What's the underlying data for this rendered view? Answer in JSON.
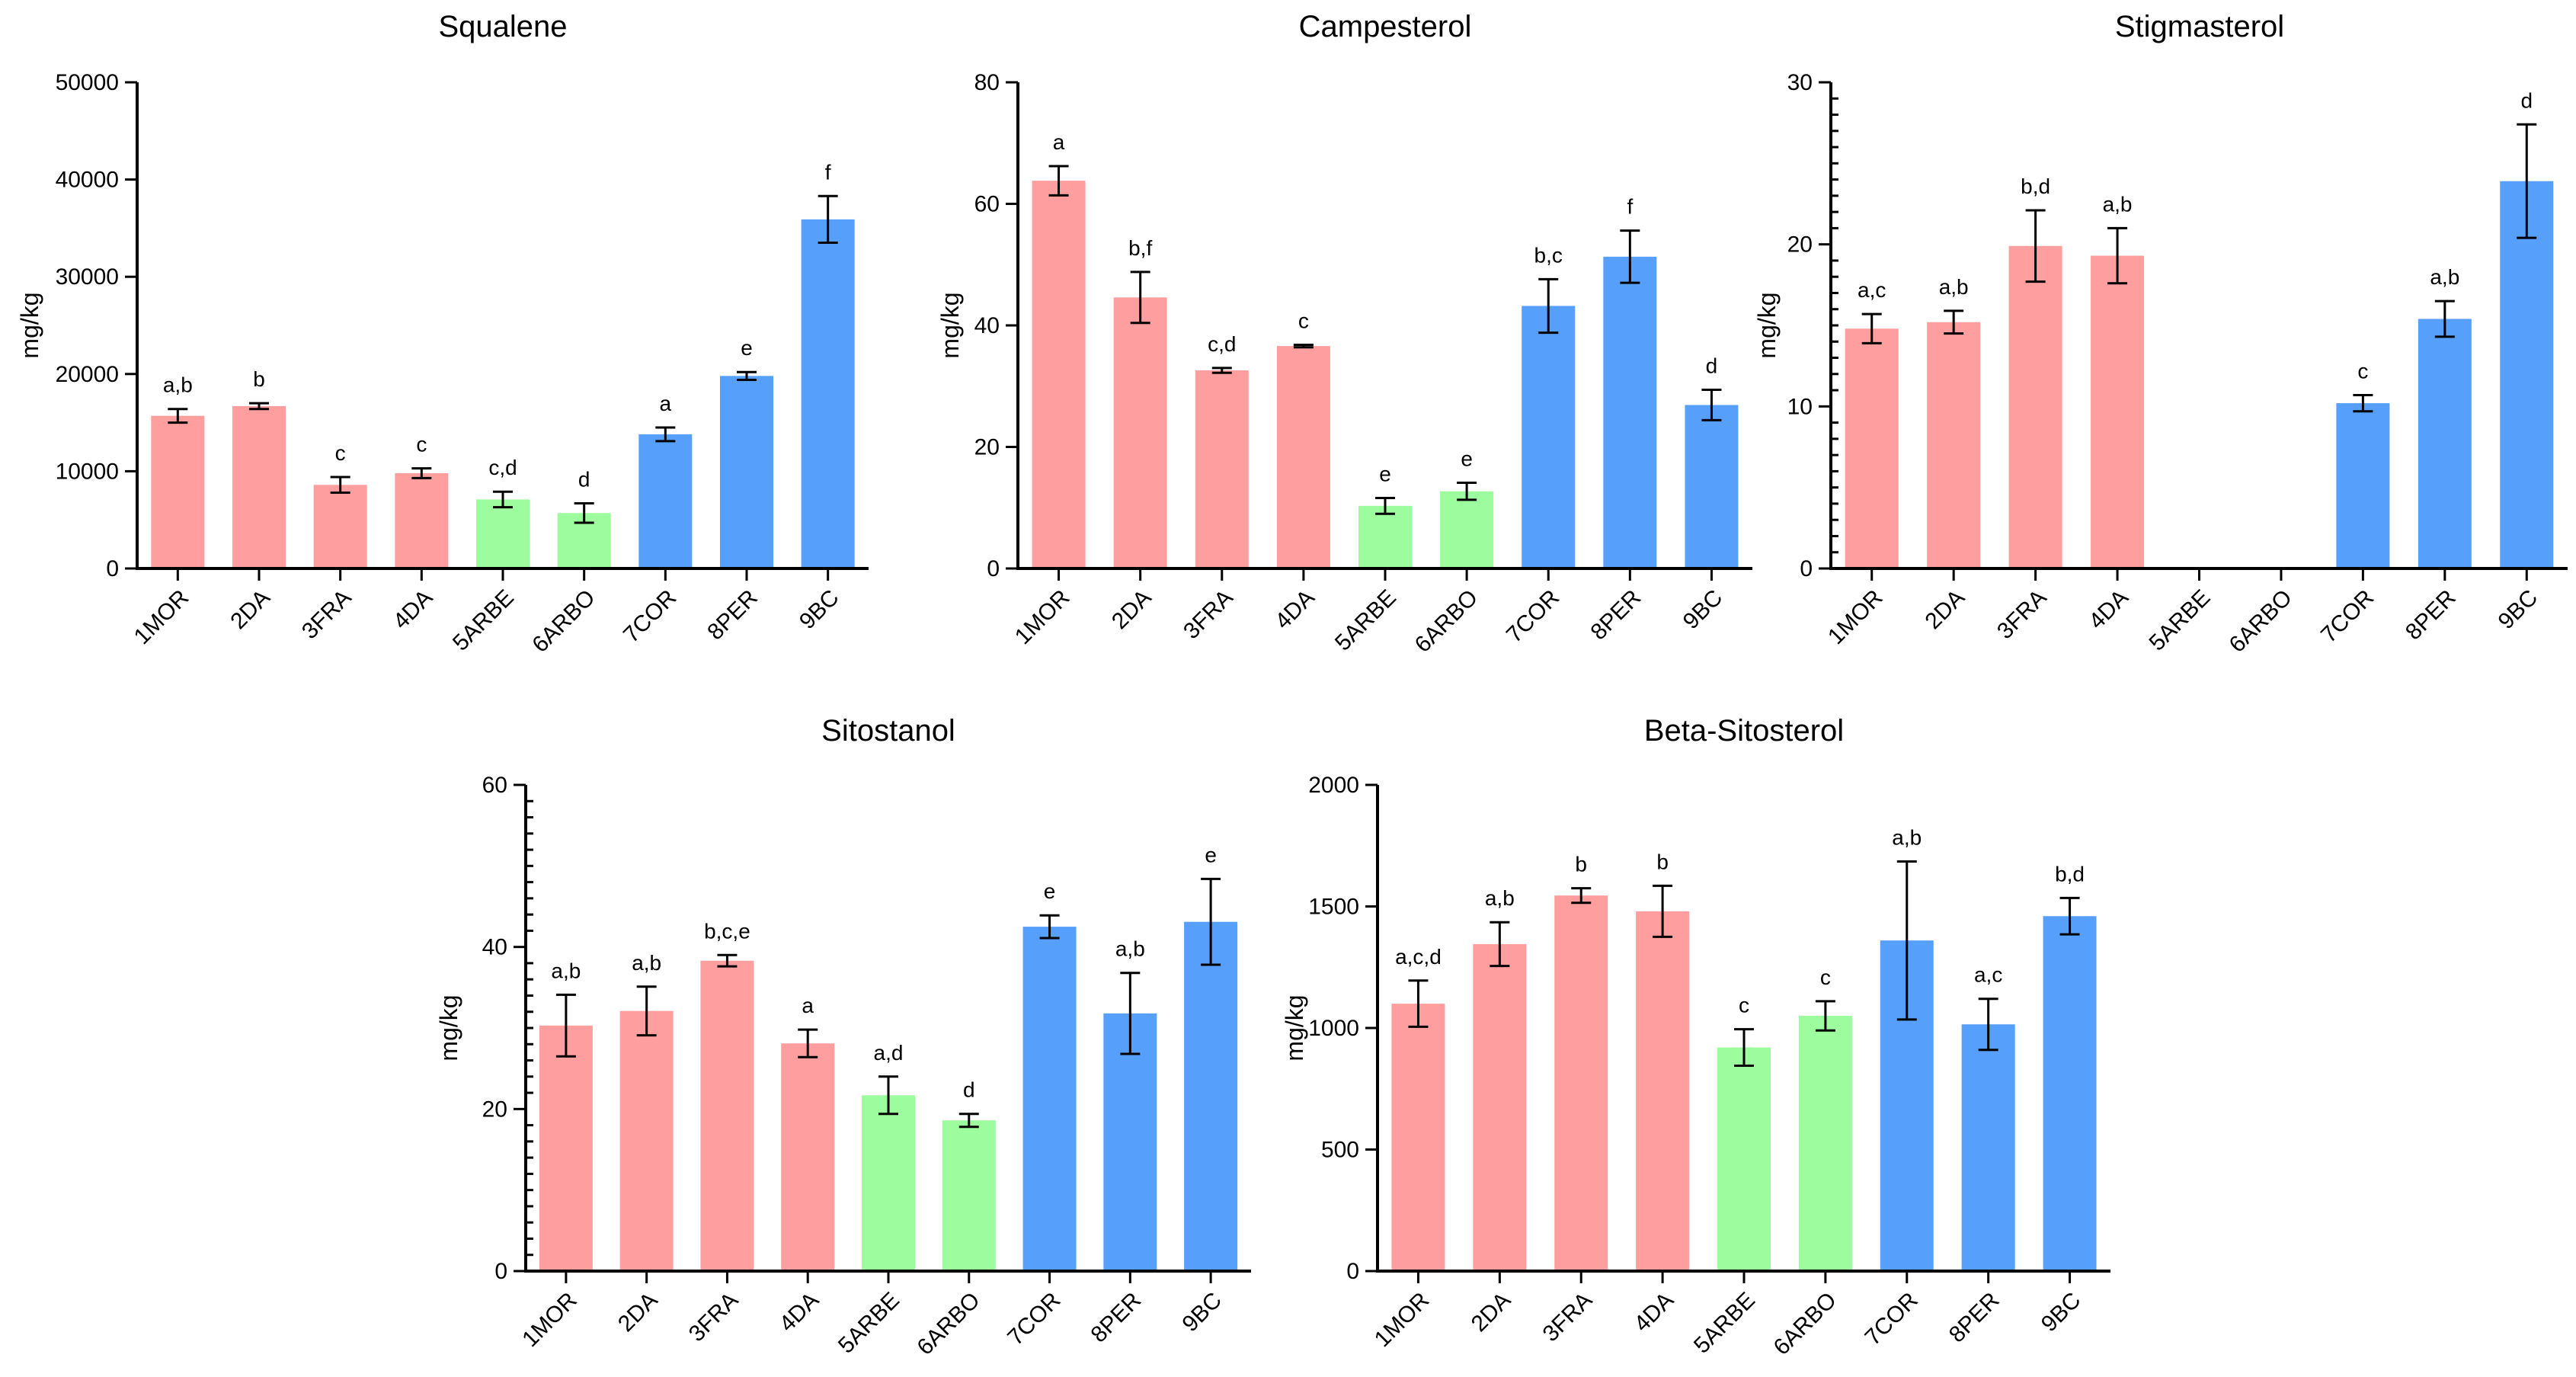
{
  "palette": {
    "group_a": "#ff9e9e",
    "group_b": "#9dfc9d",
    "group_c": "#569ffb",
    "axis": "#000000"
  },
  "chart_data": [
    {
      "type": "bar",
      "title": "Squalene",
      "ylabel": "mg/kg",
      "xlabel": "",
      "ylim": [
        0,
        50000
      ],
      "yticks": [
        0,
        10000,
        20000,
        30000,
        40000,
        50000
      ],
      "minor_ticks": 0,
      "categories": [
        "1MOR",
        "2DA",
        "3FRA",
        "4DA",
        "5ARBE",
        "6ARBO",
        "7COR",
        "8PER",
        "9BC"
      ],
      "values": [
        15700,
        16700,
        8600,
        9800,
        7100,
        5700,
        13800,
        19800,
        35900
      ],
      "errors": [
        700,
        300,
        800,
        500,
        800,
        1000,
        700,
        400,
        2400
      ],
      "labels": [
        "a,b",
        "b",
        "c",
        "c",
        "c,d",
        "d",
        "a",
        "e",
        "f"
      ],
      "groups": [
        "a",
        "a",
        "a",
        "a",
        "b",
        "b",
        "c",
        "c",
        "c"
      ]
    },
    {
      "type": "bar",
      "title": "Campesterol",
      "ylabel": "mg/kg",
      "xlabel": "",
      "ylim": [
        0,
        80
      ],
      "yticks": [
        0,
        20,
        40,
        60,
        80
      ],
      "minor_ticks": 0,
      "categories": [
        "1MOR",
        "2DA",
        "3FRA",
        "4DA",
        "5ARBE",
        "6ARBO",
        "7COR",
        "8PER",
        "9BC"
      ],
      "values": [
        63.8,
        44.6,
        32.6,
        36.6,
        10.3,
        12.7,
        43.2,
        51.3,
        26.9
      ],
      "errors": [
        2.4,
        4.2,
        0.4,
        0.2,
        1.3,
        1.4,
        4.4,
        4.3,
        2.5
      ],
      "labels": [
        "a",
        "b,f",
        "c,d",
        "c",
        "e",
        "e",
        "b,c",
        "f",
        "d"
      ],
      "groups": [
        "a",
        "a",
        "a",
        "a",
        "b",
        "b",
        "c",
        "c",
        "c"
      ]
    },
    {
      "type": "bar",
      "title": "Stigmasterol",
      "ylabel": "mg/kg",
      "xlabel": "",
      "ylim": [
        0,
        30
      ],
      "yticks": [
        0,
        10,
        20,
        30
      ],
      "minor_ticks": 9,
      "categories": [
        "1MOR",
        "2DA",
        "3FRA",
        "4DA",
        "5ARBE",
        "6ARBO",
        "7COR",
        "8PER",
        "9BC"
      ],
      "values": [
        14.8,
        15.2,
        19.9,
        19.3,
        0,
        0,
        10.2,
        15.4,
        23.9
      ],
      "errors": [
        0.9,
        0.7,
        2.2,
        1.7,
        0,
        0,
        0.5,
        1.1,
        3.5
      ],
      "labels": [
        "a,c",
        "a,b",
        "b,d",
        "a,b",
        "",
        "",
        "c",
        "a,b",
        "d"
      ],
      "groups": [
        "a",
        "a",
        "a",
        "a",
        "b",
        "b",
        "c",
        "c",
        "c"
      ]
    },
    {
      "type": "bar",
      "title": "Sitostanol",
      "ylabel": "mg/kg",
      "xlabel": "",
      "ylim": [
        0,
        60
      ],
      "yticks": [
        0,
        20,
        40,
        60
      ],
      "minor_ticks": 9,
      "categories": [
        "1MOR",
        "2DA",
        "3FRA",
        "4DA",
        "5ARBE",
        "6ARBO",
        "7COR",
        "8PER",
        "9BC"
      ],
      "values": [
        30.3,
        32.1,
        38.3,
        28.1,
        21.7,
        18.6,
        42.5,
        31.8,
        43.1
      ],
      "errors": [
        3.8,
        3.0,
        0.7,
        1.7,
        2.3,
        0.8,
        1.4,
        5.0,
        5.3
      ],
      "labels": [
        "a,b",
        "a,b",
        "b,c,e",
        "a",
        "a,d",
        "d",
        "e",
        "a,b",
        "e"
      ],
      "groups": [
        "a",
        "a",
        "a",
        "a",
        "b",
        "b",
        "c",
        "c",
        "c"
      ]
    },
    {
      "type": "bar",
      "title": "Beta-Sitosterol",
      "ylabel": "mg/kg",
      "xlabel": "",
      "ylim": [
        0,
        2000
      ],
      "yticks": [
        0,
        500,
        1000,
        1500,
        2000
      ],
      "minor_ticks": 0,
      "categories": [
        "1MOR",
        "2DA",
        "3FRA",
        "4DA",
        "5ARBE",
        "6ARBO",
        "7COR",
        "8PER",
        "9BC"
      ],
      "values": [
        1100,
        1345,
        1545,
        1480,
        920,
        1050,
        1360,
        1015,
        1460
      ],
      "errors": [
        95,
        90,
        30,
        105,
        75,
        60,
        325,
        105,
        75
      ],
      "labels": [
        "a,c,d",
        "a,b",
        "b",
        "b",
        "c",
        "c",
        "a,b",
        "a,c",
        "b,d"
      ],
      "groups": [
        "a",
        "a",
        "a",
        "a",
        "b",
        "b",
        "c",
        "c",
        "c"
      ]
    }
  ]
}
